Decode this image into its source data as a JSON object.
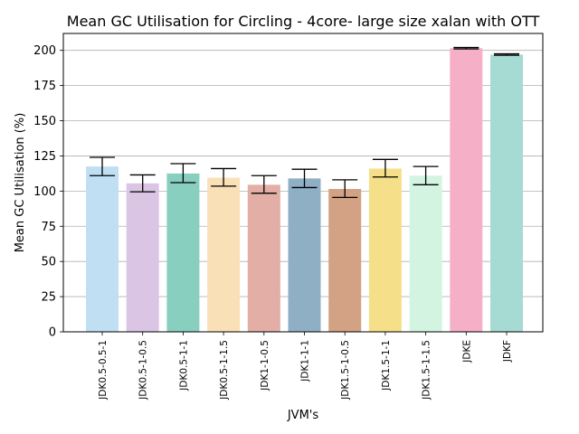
{
  "chart_data": {
    "type": "bar",
    "title": "Mean GC Utilisation for Circling - 4core- large size xalan with OTT",
    "xlabel": "JVM's",
    "ylabel": "Mean GC Utilisation (%)",
    "ylim": [
      0,
      212
    ],
    "yticks": [
      0,
      25,
      50,
      75,
      100,
      125,
      150,
      175,
      200
    ],
    "grid": "horizontal",
    "categories": [
      "JDK0.5-0.5-1",
      "JDK0.5-1-0.5",
      "JDK0.5-1-1",
      "JDK0.5-1-1.5",
      "JDK1-1-0.5",
      "JDK1-1-1",
      "JDK1.5-1-0.5",
      "JDK1.5-1-1",
      "JDK1.5-1-1.5",
      "JDKE",
      "JDKF"
    ],
    "values": [
      117.5,
      105.5,
      112.5,
      109.5,
      104.5,
      109,
      101.5,
      116,
      111,
      201.5,
      197
    ],
    "error_low": [
      111,
      99.5,
      106,
      103.5,
      98.5,
      102.5,
      95.5,
      110,
      104.5,
      201,
      196.5
    ],
    "error_high": [
      124,
      111.5,
      119.5,
      116,
      111,
      115.5,
      108,
      122.5,
      117.5,
      202,
      197.5
    ],
    "colors": [
      "#c0dff2",
      "#dbc5e4",
      "#88cfc0",
      "#fae0b6",
      "#e2aea5",
      "#8fafc4",
      "#d3a183",
      "#f5df88",
      "#d3f4e1",
      "#f5b0c7",
      "#a6dbd3"
    ]
  }
}
